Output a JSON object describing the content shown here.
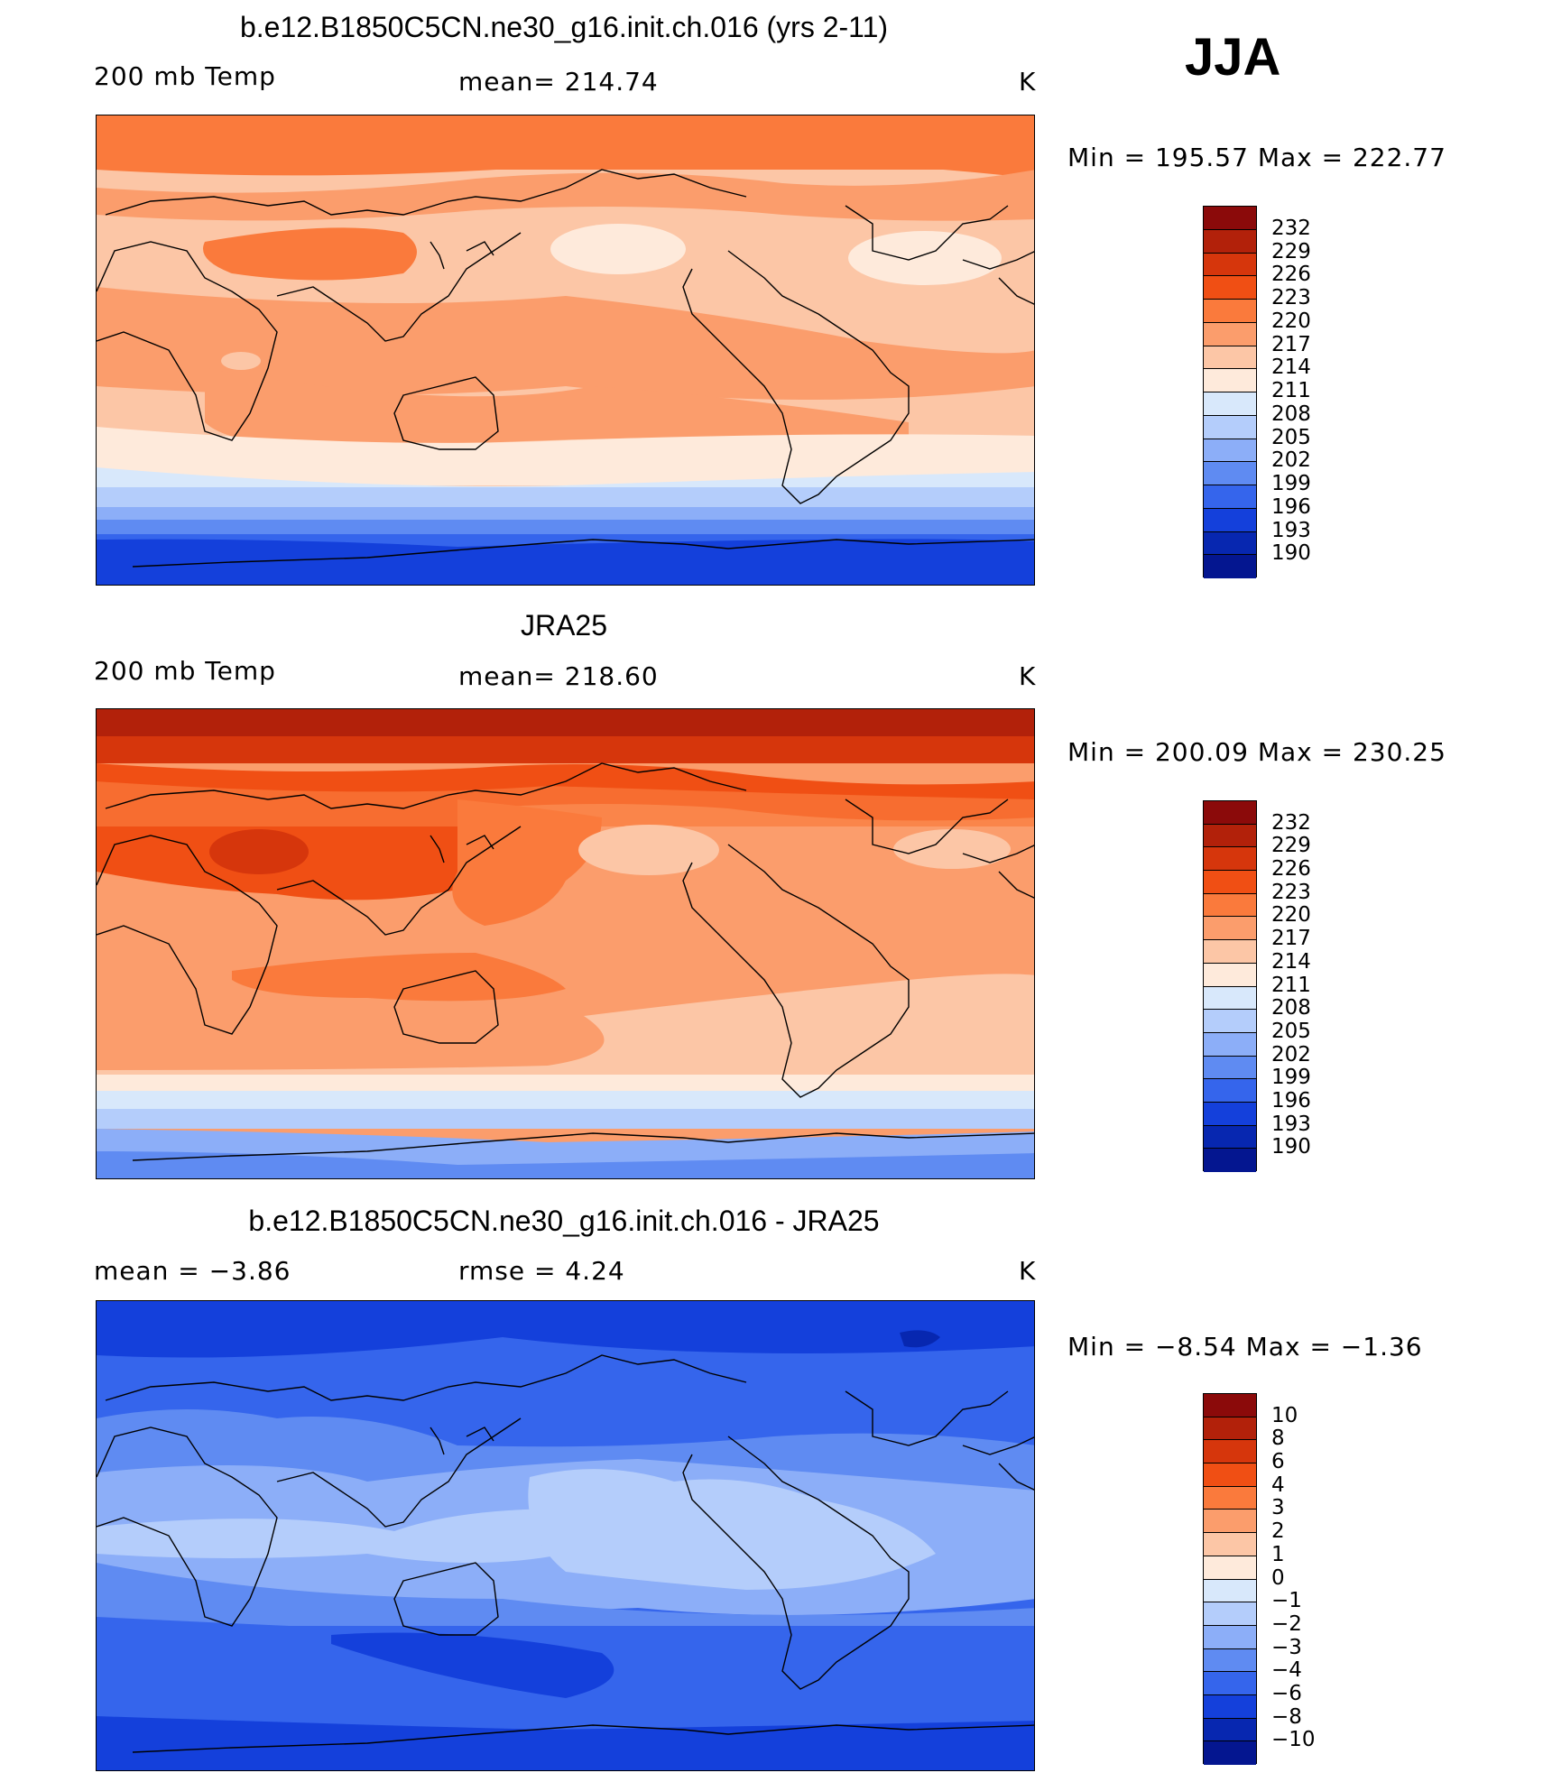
{
  "season": "JJA",
  "panels": [
    {
      "title": "b.e12.B1850C5CN.ne30_g16.init.ch.016 (yrs 2-11)",
      "left_label": "200 mb Temp",
      "center_label": "mean=  214.74",
      "units": "K",
      "minmax": "Min  =  195.57  Max  =  222.77"
    },
    {
      "title": "JRA25",
      "left_label": "200 mb Temp",
      "center_label": "mean=  218.60",
      "units": "K",
      "minmax": "Min  =  200.09  Max  =  230.25"
    },
    {
      "title": "b.e12.B1850C5CN.ne30_g16.init.ch.016 - JRA25",
      "left_label": "mean  =     −3.86",
      "center_label": "rmse  =     4.24",
      "units": "K",
      "minmax": "Min  =    −8.54  Max  =    −1.36"
    }
  ],
  "colorbars": {
    "temp": {
      "labels": [
        "232",
        "229",
        "226",
        "223",
        "220",
        "217",
        "214",
        "211",
        "208",
        "205",
        "202",
        "199",
        "196",
        "193",
        "190"
      ],
      "colors": [
        "#8b0a0a",
        "#b2210a",
        "#d6360c",
        "#f04f14",
        "#fa7a3c",
        "#fb9d6c",
        "#fcc6a6",
        "#feeadb",
        "#d8e8fb",
        "#b4cdfb",
        "#8caef8",
        "#5f8bf2",
        "#3565ec",
        "#1440db",
        "#0727b0",
        "#041690"
      ]
    },
    "diff": {
      "labels": [
        "10",
        "8",
        "6",
        "4",
        "3",
        "2",
        "1",
        "0",
        "−1",
        "−2",
        "−3",
        "−4",
        "−6",
        "−8",
        "−10"
      ],
      "colors": [
        "#8b0a0a",
        "#b2210a",
        "#d6360c",
        "#f04f14",
        "#fa7a3c",
        "#fb9d6c",
        "#fcc6a6",
        "#feeadb",
        "#d8e8fb",
        "#b4cdfb",
        "#8caef8",
        "#5f8bf2",
        "#3565ec",
        "#1440db",
        "#0727b0",
        "#041690"
      ]
    }
  }
}
